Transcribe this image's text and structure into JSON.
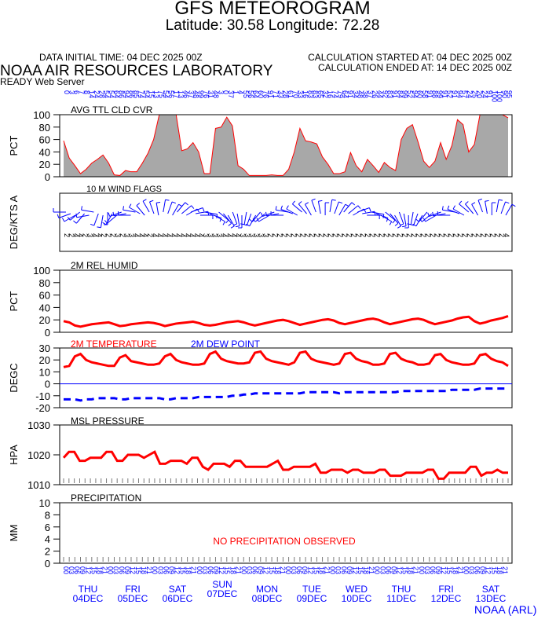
{
  "header": {
    "title": "GFS METEOROGRAM",
    "latlon": "Latitude: 30.58 Longitude:  72.28",
    "init_time": "DATA INITIAL TIME: 04 DEC 2025 00Z",
    "calc_started": "CALCULATION STARTED AT: 04 DEC 2025 00Z",
    "calc_ended": "CALCULATION ENDED AT: 14 DEC 2025 00Z",
    "lab": "NOAA AIR RESOURCES LABORATORY",
    "server": "READY Web Server",
    "footer": "NOAA (ARL)"
  },
  "colors": {
    "red": "#ff0000",
    "blue": "#0000ff",
    "cloud_fill": "#a8a8a8",
    "frame": "#000000"
  },
  "chart_data": [
    {
      "type": "area",
      "title": "AVG TTL CLD CVR",
      "ylabel": "PCT",
      "ylim": [
        0,
        100
      ],
      "yticks": [
        "0",
        "20",
        "40",
        "60",
        "80",
        "100"
      ],
      "x_step_hours": 3,
      "values": [
        58,
        30,
        18,
        5,
        12,
        22,
        28,
        35,
        22,
        3,
        2,
        10,
        8,
        8,
        22,
        38,
        60,
        100,
        100,
        100,
        100,
        42,
        45,
        55,
        40,
        5,
        5,
        78,
        80,
        96,
        82,
        18,
        12,
        2,
        2,
        2,
        2,
        3,
        2,
        2,
        12,
        40,
        78,
        58,
        56,
        53,
        32,
        20,
        5,
        5,
        8,
        39,
        18,
        8,
        28,
        18,
        7,
        23,
        15,
        10,
        60,
        78,
        84,
        56,
        25,
        15,
        25,
        55,
        28,
        50,
        92,
        84,
        40,
        52,
        100,
        100,
        100,
        100,
        100,
        95
      ],
      "top_numbers": "0 3 6 7 8 14 24 28 54 54 64 86 94 86 85 74 54 15 13 75 54 56 17 13 46 37 48 99 76 31 48 3 0 37 1 4 55 56 64 60 76 91 71 33 28 61 70 33 16 83 83 65 32 16 74 79 64 91 34 48 38 37 26 44 92 83 91 84 99 52 94 60 58 91 88 99 91 52 91 94 57 24 25 20 24 91 100 100 90 95"
    },
    {
      "type": "scatter",
      "title": "10 M  WIND FLAGS",
      "ylabel": "DEG/KTS  A",
      "speeds": "2 2 4 4 2 3 4 4 2 2 2 3 2 3 3 4 4 4 2 4 4 4 4 4 4 4 4 4 4 4 3 3 3 3 4 4 4 4 3 3 3 3 3 3 2 2 2 2 2 2 2 2 2 2 2 2 2 2 2 2 2 2 2 2 2 2 2 2 2 2 2 2 2 2 2 2 2 2 2 2 2 2 2 2 2 2 2 2 2 2 2 2 2 2 2 4",
      "directions_deg": [
        270,
        250,
        240,
        230,
        220,
        260,
        280,
        200,
        190,
        180,
        210,
        230,
        250,
        260,
        270,
        280,
        300,
        320,
        330,
        340,
        350,
        10,
        20,
        30,
        40,
        50,
        60,
        70,
        80,
        90,
        100,
        110,
        120,
        130,
        140,
        150,
        160,
        170,
        180,
        190,
        200,
        210,
        220,
        230,
        240,
        250,
        260,
        270,
        280,
        290,
        300,
        310,
        320,
        330,
        340,
        350,
        0,
        10,
        20,
        30,
        40,
        50,
        60,
        70,
        80,
        90,
        100,
        110,
        120,
        130,
        140,
        150,
        160,
        170,
        180,
        190,
        200,
        210,
        220,
        230,
        240,
        250,
        260,
        270,
        280,
        290,
        300,
        310,
        320,
        330,
        340,
        350,
        0,
        10,
        20,
        30
      ]
    },
    {
      "type": "line",
      "title": "2M REL HUMID",
      "ylabel": "PCT",
      "ylim": [
        0,
        100
      ],
      "yticks": [
        "0",
        "20",
        "40",
        "60",
        "80",
        "100"
      ],
      "x_step_hours": 3,
      "values": [
        18,
        16,
        11,
        9,
        11,
        13,
        14,
        15,
        16,
        13,
        10,
        11,
        13,
        14,
        15,
        16,
        15,
        13,
        10,
        12,
        14,
        15,
        16,
        17,
        15,
        12,
        11,
        12,
        14,
        16,
        17,
        18,
        16,
        13,
        11,
        13,
        15,
        17,
        19,
        20,
        18,
        15,
        12,
        14,
        16,
        18,
        20,
        21,
        19,
        15,
        13,
        15,
        17,
        19,
        21,
        22,
        20,
        16,
        13,
        15,
        17,
        19,
        21,
        22,
        20,
        16,
        13,
        15,
        17,
        19,
        22,
        24,
        25,
        18,
        14,
        16,
        19,
        21,
        23,
        26
      ]
    },
    {
      "type": "line",
      "title": "2M TEMPERATURE",
      "series_names": [
        "2M TEMPERATURE",
        "2M  DEW POINT"
      ],
      "ylabel": "DEGC",
      "ylim": [
        -20,
        30
      ],
      "yticks": [
        "-20",
        "-10",
        "0",
        "10",
        "20",
        "30"
      ],
      "x_step_hours": 3,
      "series": [
        {
          "name": "2M TEMPERATURE",
          "color": "#ff0000",
          "values": [
            14,
            15,
            23,
            25,
            20,
            18,
            17,
            16,
            15,
            15,
            22,
            24,
            19,
            18,
            17,
            16,
            16,
            17,
            23,
            25,
            20,
            18,
            17,
            16,
            16,
            17,
            25,
            27,
            21,
            19,
            18,
            17,
            17,
            18,
            26,
            27,
            21,
            19,
            18,
            17,
            16,
            18,
            26,
            27,
            21,
            19,
            18,
            17,
            16,
            17,
            25,
            26,
            21,
            19,
            18,
            16,
            16,
            17,
            25,
            26,
            21,
            19,
            18,
            16,
            16,
            17,
            24,
            25,
            20,
            18,
            17,
            16,
            16,
            17,
            24,
            25,
            21,
            19,
            18,
            15
          ]
        },
        {
          "name": "2M  DEW POINT",
          "color": "#0000ff",
          "values": [
            -13,
            -13,
            -13,
            -14,
            -13,
            -13,
            -12,
            -12,
            -12,
            -12,
            -13,
            -13,
            -12,
            -12,
            -12,
            -12,
            -12,
            -12,
            -13,
            -13,
            -12,
            -12,
            -12,
            -12,
            -11,
            -11,
            -11,
            -11,
            -11,
            -11,
            -10,
            -10,
            -9,
            -9,
            -8,
            -8,
            -8,
            -8,
            -8,
            -8,
            -8,
            -8,
            -8,
            -7,
            -7,
            -7,
            -7,
            -7,
            -7,
            -8,
            -7,
            -7,
            -7,
            -7,
            -7,
            -7,
            -7,
            -7,
            -7,
            -7,
            -6,
            -6,
            -6,
            -6,
            -6,
            -6,
            -6,
            -6,
            -6,
            -5,
            -5,
            -5,
            -5,
            -5,
            -4,
            -4,
            -4,
            -4,
            -4,
            -4
          ]
        }
      ]
    },
    {
      "type": "line",
      "title": "MSL PRESSURE",
      "ylabel": "HPA",
      "ylim": [
        1010,
        1030
      ],
      "yticks": [
        "1010",
        "1020",
        "1030"
      ],
      "x_step_hours": 3,
      "values": [
        1019,
        1021,
        1021,
        1018,
        1018,
        1019,
        1019,
        1019,
        1021,
        1021,
        1018,
        1018,
        1020,
        1020,
        1020,
        1019,
        1020,
        1021,
        1017,
        1017,
        1018,
        1018,
        1018,
        1017,
        1019,
        1019,
        1016,
        1015,
        1017,
        1017,
        1017,
        1016,
        1018,
        1018,
        1016,
        1016,
        1016,
        1016,
        1016,
        1017,
        1018,
        1015,
        1015,
        1016,
        1016,
        1016,
        1016,
        1017,
        1014,
        1014,
        1015,
        1015,
        1015,
        1014,
        1015,
        1015,
        1014,
        1014,
        1014,
        1015,
        1015,
        1013,
        1013,
        1013,
        1014,
        1014,
        1014,
        1014,
        1015,
        1015,
        1012,
        1012,
        1014,
        1014,
        1014,
        1014,
        1016,
        1016,
        1013,
        1014,
        1014,
        1015,
        1014,
        1014
      ]
    },
    {
      "type": "bar",
      "title": "PRECIPITATION",
      "ylabel": "MM",
      "ylim": [
        0,
        10
      ],
      "yticks": [
        "0",
        "2",
        "4",
        "6",
        "8",
        "10"
      ],
      "note": "NO PRECIPITATION OBSERVED",
      "values": []
    }
  ],
  "xaxis": {
    "hour_labels": [
      "00",
      "03",
      "06",
      "09",
      "12",
      "15",
      "18",
      "21"
    ],
    "days": [
      {
        "dow": "THU",
        "date": "04DEC"
      },
      {
        "dow": "FRI",
        "date": "05DEC"
      },
      {
        "dow": "SAT",
        "date": "06DEC"
      },
      {
        "dow": "SUN",
        "date": "07DEC"
      },
      {
        "dow": "MON",
        "date": "08DEC"
      },
      {
        "dow": "TUE",
        "date": "09DEC"
      },
      {
        "dow": "WED",
        "date": "10DEC"
      },
      {
        "dow": "THU",
        "date": "11DEC"
      },
      {
        "dow": "FRI",
        "date": "12DEC"
      },
      {
        "dow": "SAT",
        "date": "13DEC"
      }
    ]
  }
}
